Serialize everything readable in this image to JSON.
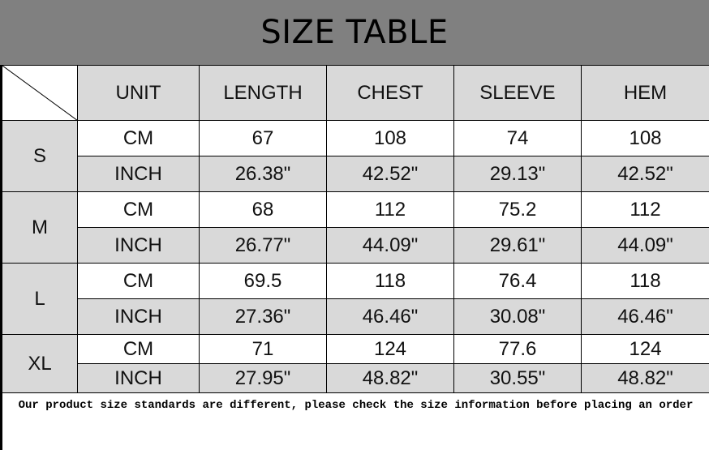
{
  "title": "SIZE TABLE",
  "headers": [
    "UNIT",
    "LENGTH",
    "CHEST",
    "SLEEVE",
    "HEM"
  ],
  "sizes": [
    {
      "size": "S",
      "cm": {
        "unit": "CM",
        "values": [
          "67",
          "108",
          "74",
          "108"
        ]
      },
      "inch": {
        "unit": "INCH",
        "values": [
          "26.38\"",
          "42.52\"",
          "29.13\"",
          "42.52\""
        ]
      }
    },
    {
      "size": "M",
      "cm": {
        "unit": "CM",
        "values": [
          "68",
          "112",
          "75.2",
          "112"
        ]
      },
      "inch": {
        "unit": "INCH",
        "values": [
          "26.77\"",
          "44.09\"",
          "29.61\"",
          "44.09\""
        ]
      }
    },
    {
      "size": "L",
      "cm": {
        "unit": "CM",
        "values": [
          "69.5",
          "118",
          "76.4",
          "118"
        ]
      },
      "inch": {
        "unit": "INCH",
        "values": [
          "27.36\"",
          "46.46\"",
          "30.08\"",
          "46.46\""
        ]
      }
    },
    {
      "size": "XL",
      "cm": {
        "unit": "CM",
        "values": [
          "71",
          "124",
          "77.6",
          "124"
        ]
      },
      "inch": {
        "unit": "INCH",
        "values": [
          "27.95\"",
          "48.82\"",
          "30.55\"",
          "48.82\""
        ]
      }
    }
  ],
  "note": "Our product size standards are different, please check the size information before placing an order"
}
